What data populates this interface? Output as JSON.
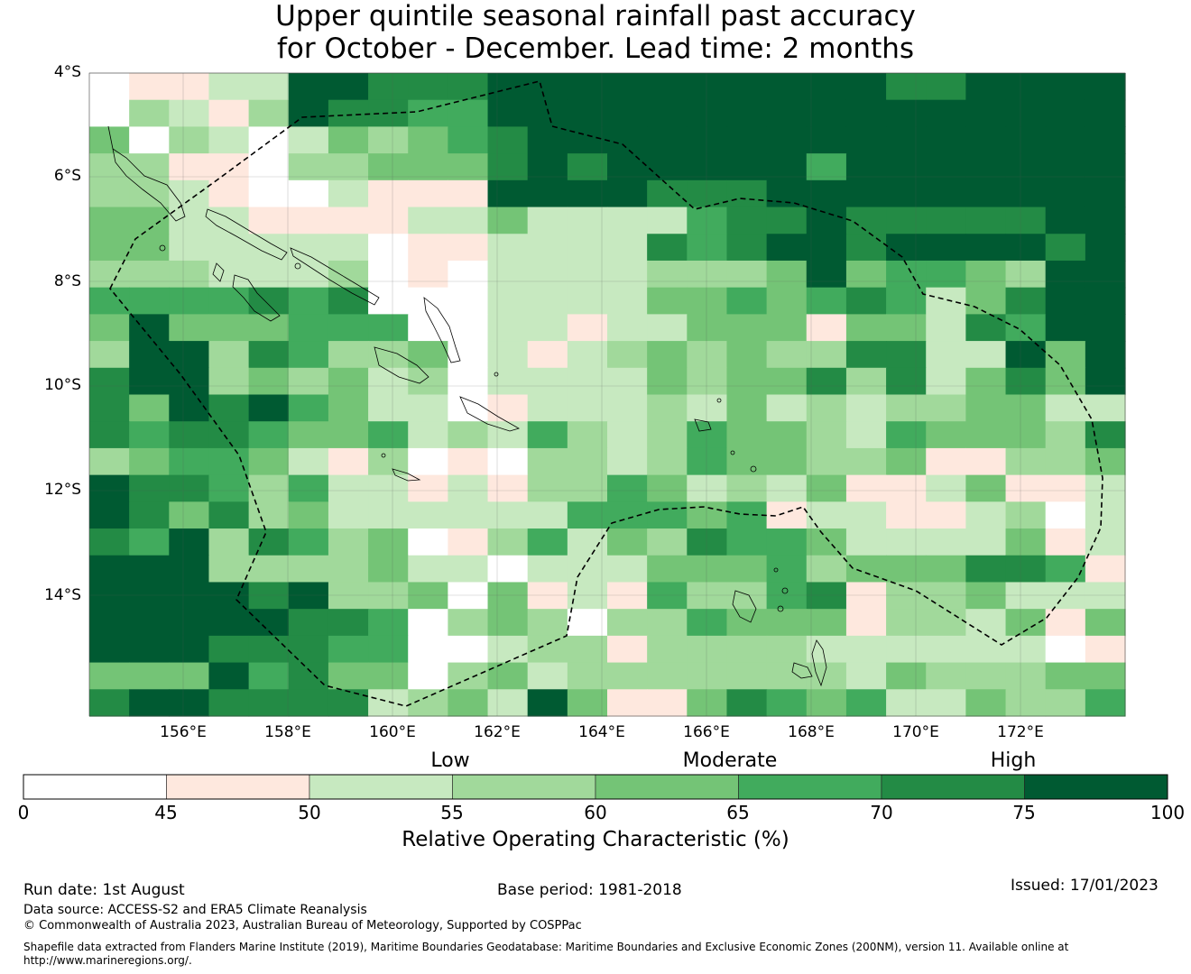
{
  "title": {
    "line1": "Upper quintile seasonal rainfall past accuracy",
    "line2": "for October - December. Lead time: 2 months"
  },
  "map": {
    "lat_labels": [
      "4°S",
      "6°S",
      "8°S",
      "10°S",
      "12°S",
      "14°S"
    ],
    "lon_labels": [
      "156°E",
      "158°E",
      "160°E",
      "162°E",
      "164°E",
      "166°E",
      "168°E",
      "170°E",
      "172°E"
    ],
    "palette": [
      "#ffffff",
      "#fee8de",
      "#c7e9c0",
      "#a1d99b",
      "#74c476",
      "#41ab5d",
      "#238b45",
      "#005a32"
    ],
    "grid_rows": [
      "01122776667777777777667777",
      "03213766557777777777777777",
      "40320243456777777777777777",
      "33110334446767777757777777",
      "33210021117777666777777777",
      "44221111224222256676666677",
      "44222220112222656776777767",
      "33322230102222333474554377",
      "55556560002222445456524677",
      "47444555002212244414426577",
      "37736533402123434336622747",
      "67734342302222434463624647",
      "64767542201222324232334422",
      "65665445232532354432544436",
      "34554213010332354433411334",
      "76653522121335423241124112",
      "76463422222255545122112302",
      "65736534013524365542222412",
      "77733334220222444534446651",
      "77776733404121533561334222",
      "77777665034303354441332414",
      "77766655002331333322222201",
      "44475644034233333332433344",
      "67766662342741146545224335"
    ]
  },
  "colorbar": {
    "ticks": [
      "0",
      "45",
      "50",
      "55",
      "60",
      "65",
      "70",
      "75",
      "100"
    ],
    "categories": [
      "Low",
      "Moderate",
      "High"
    ],
    "label": "Relative Operating Characteristic (%)"
  },
  "footer": {
    "run_date": "Run date: 1st August",
    "base_period": "Base period: 1981-2018",
    "issued": "Issued: 17/01/2023",
    "data_source": "Data source: ACCESS-S2 and ERA5 Climate Reanalysis",
    "copyright": "© Commonwealth of Australia 2023, Australian Bureau of Meteorology, Supported by COSPPac",
    "shapefile": "Shapefile data extracted from Flanders Marine Institute (2019), Maritime Boundaries Geodatabase: Maritime Boundaries and Exclusive Economic Zones (200NM), version 11. Available online at http://www.marineregions.org/."
  }
}
